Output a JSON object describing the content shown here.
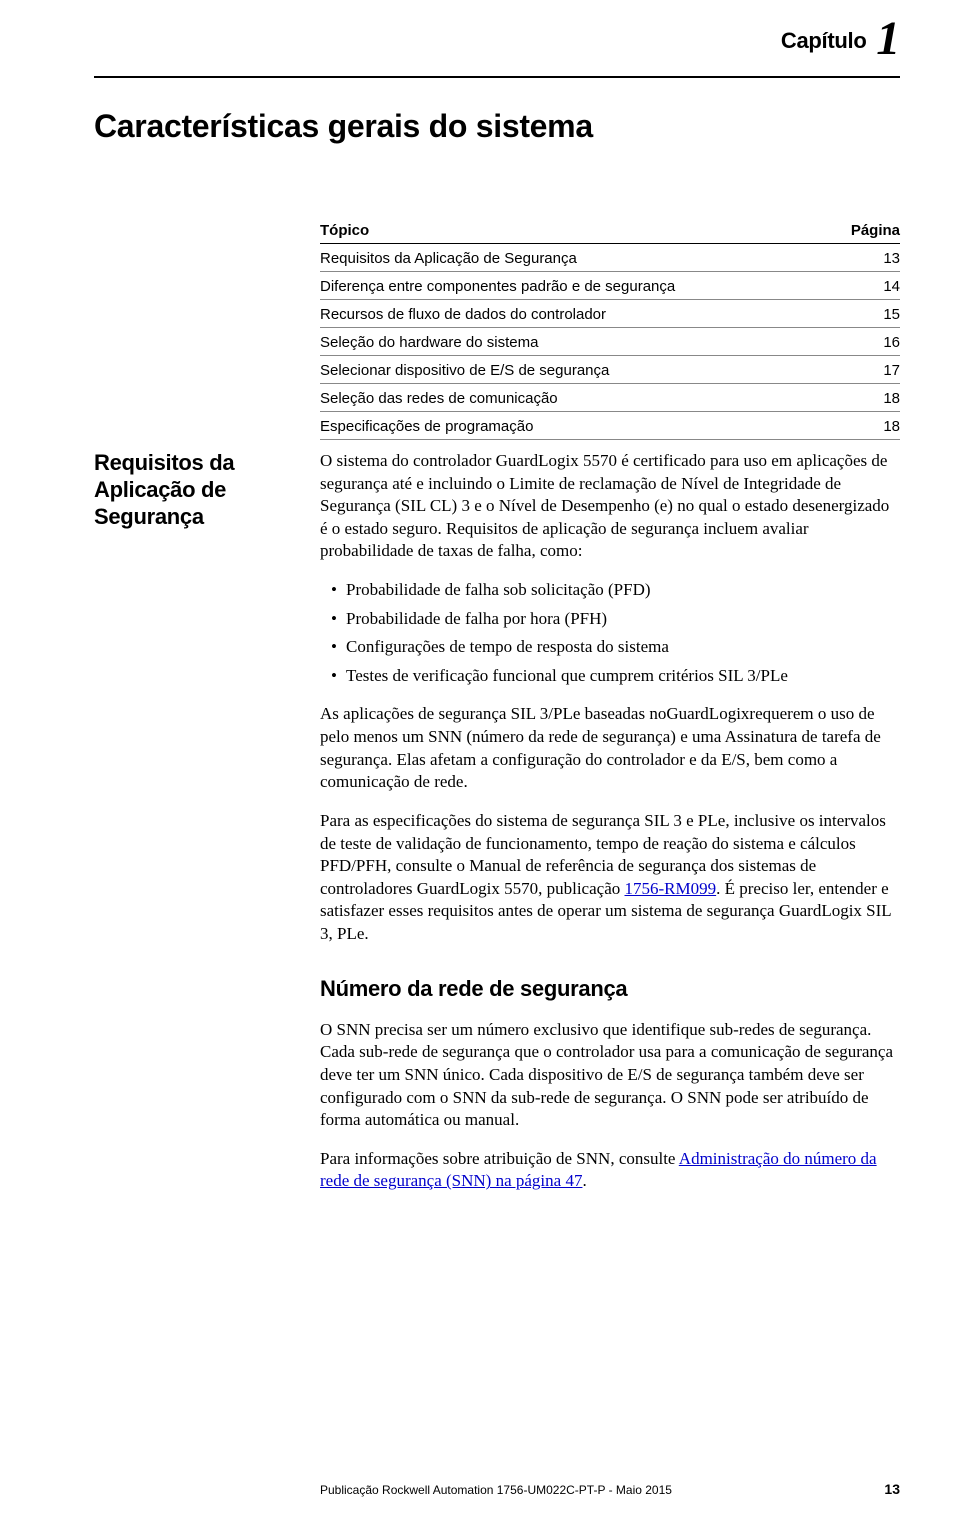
{
  "chapter": {
    "label": "Capítulo",
    "number": "1"
  },
  "mainTitle": "Características gerais do sistema",
  "toc": {
    "header": {
      "topic": "Tópico",
      "page": "Página"
    },
    "rows": [
      {
        "topic": "Requisitos da Aplicação de Segurança",
        "page": "13"
      },
      {
        "topic": "Diferença entre componentes padrão e de segurança",
        "page": "14"
      },
      {
        "topic": "Recursos de fluxo de dados do controlador",
        "page": "15"
      },
      {
        "topic": "Seleção do hardware do sistema",
        "page": "16"
      },
      {
        "topic": "Selecionar dispositivo de E/S de segurança",
        "page": "17"
      },
      {
        "topic": "Seleção das redes de comunicação",
        "page": "18"
      },
      {
        "topic": "Especificações de programação",
        "page": "18"
      }
    ]
  },
  "sideTitle": "Requisitos da Aplicação de Segurança",
  "body": {
    "p1": "O sistema do controlador GuardLogix 5570 é certificado para uso em aplicações de segurança até e incluindo o Limite de reclamação de Nível de Integridade de Segurança (SIL CL) 3 e o Nível de Desempenho (e) no qual o estado desenergizado é o estado seguro. Requisitos de aplicação de segurança incluem avaliar probabilidade de taxas de falha, como:",
    "bullets": [
      "Probabilidade de falha sob solicitação (PFD)",
      "Probabilidade de falha por hora (PFH)",
      "Configurações de tempo de resposta do sistema",
      "Testes de verificação funcional que cumprem critérios SIL 3/PLe"
    ],
    "p2": "As aplicações de segurança SIL 3/PLe baseadas noGuardLogixrequerem o uso de pelo menos um SNN (número da rede de segurança) e uma Assinatura de tarefa de segurança. Elas afetam a configuração do controlador e da E/S, bem como a comunicação de rede.",
    "p3a": "Para as especificações do sistema de segurança SIL 3 e PLe, inclusive os intervalos de teste de validação de funcionamento, tempo de reação do sistema e cálculos PFD/PFH, consulte o Manual de referência de segurança dos sistemas de controladores GuardLogix 5570, publicação ",
    "p3link": "1756-RM099",
    "p3b": ". É preciso ler, entender e satisfazer esses requisitos antes de operar um sistema de segurança GuardLogix SIL 3, PLe.",
    "subheading": "Número da rede de segurança",
    "p4": "O SNN precisa ser um número exclusivo que identifique sub-redes de segurança. Cada sub-rede de segurança que o controlador usa para a comunicação de segurança deve ter um SNN único. Cada dispositivo de E/S de segurança também deve ser configurado com o SNN da sub-rede de segurança. O SNN pode ser atribuído de forma automática ou manual.",
    "p5a": "Para informações sobre atribuição de SNN, consulte ",
    "p5link": "Administração do número da rede de segurança (SNN) na página 47",
    "p5b": "."
  },
  "footer": {
    "publication": "Publicação Rockwell Automation 1756-UM022C-PT-P - Maio 2015",
    "pageNumber": "13"
  }
}
